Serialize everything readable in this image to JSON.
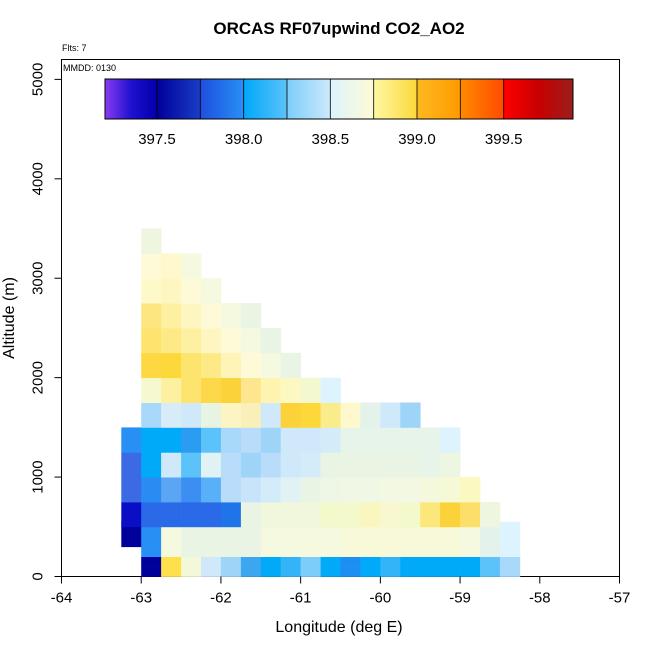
{
  "chart_data": {
    "type": "heatmap",
    "title": "ORCAS RF07upwind CO2_AO2",
    "annotations": {
      "flights": "Flts: 7",
      "date": "MMDD: 0130"
    },
    "xlabel": "Longitude (deg E)",
    "ylabel": "Altitude (m)",
    "xlim": [
      -64,
      -57
    ],
    "ylim": [
      0,
      5200
    ],
    "x_ticks": [
      "-64",
      "-63",
      "-62",
      "-61",
      "-60",
      "-59",
      "-58",
      "-57"
    ],
    "y_ticks": [
      "0",
      "1000",
      "2000",
      "3000",
      "4000",
      "5000"
    ],
    "x_tick_values": [
      -64,
      -63,
      -62,
      -61,
      -60,
      -59,
      -58,
      -57
    ],
    "y_tick_values": [
      0,
      1000,
      2000,
      3000,
      4000,
      5000
    ],
    "colorbar": {
      "min": 397.2,
      "max": 399.9,
      "tick_values": [
        397.5,
        398.0,
        398.5,
        399.0,
        399.5
      ],
      "tick_labels": [
        "397.5",
        "398.0",
        "398.5",
        "399.0",
        "399.5"
      ],
      "segments": [
        {
          "from": 397.2,
          "to": 397.5,
          "colors": [
            "#8a3cf0",
            "#1e10d0",
            "#0000a8"
          ]
        },
        {
          "from": 397.5,
          "to": 397.75,
          "colors": [
            "#00009a",
            "#1a3ec6"
          ]
        },
        {
          "from": 397.75,
          "to": 398.0,
          "colors": [
            "#1f4ee0",
            "#2890f4"
          ]
        },
        {
          "from": 398.0,
          "to": 398.25,
          "colors": [
            "#00a8f8",
            "#5cc2fa"
          ]
        },
        {
          "from": 398.25,
          "to": 398.5,
          "colors": [
            "#7ccdfa",
            "#cde9fb"
          ]
        },
        {
          "from": 398.5,
          "to": 398.75,
          "colors": [
            "#ddf3fd",
            "#fefbd6"
          ]
        },
        {
          "from": 398.75,
          "to": 399.0,
          "colors": [
            "#fff7a2",
            "#fbd83a"
          ]
        },
        {
          "from": 399.0,
          "to": 399.25,
          "colors": [
            "#fdb920",
            "#ff9a00"
          ]
        },
        {
          "from": 399.25,
          "to": 399.5,
          "colors": [
            "#ff8a00",
            "#ff4a00"
          ]
        },
        {
          "from": 399.5,
          "to": 399.9,
          "colors": [
            "#ff0000",
            "#c80000",
            "#9a1e1e"
          ]
        }
      ]
    },
    "lon_bins": [
      -63.25,
      -63.0,
      -62.75,
      -62.5,
      -62.25,
      -62.0,
      -61.75,
      -61.5,
      -61.25,
      -61.0,
      -60.75,
      -60.5,
      -60.25,
      -60.0,
      -59.75,
      -59.5,
      -59.25,
      -59.0,
      -58.75,
      -58.5
    ],
    "alt_bin_size": 100,
    "cells": [
      {
        "alt": 0,
        "lon0": -63.0,
        "values": [
          "#00009a",
          "#fde04a",
          "#f3f8d8",
          "#cfe9fa",
          "#9fd4f9",
          "#3da6f0",
          "#00aaf8",
          "#33b3f8",
          "#7ccdfa",
          "#00aaf8",
          "#1e8ff2",
          "#00aaf8",
          "#33b3f8",
          "#00aaf8",
          "#00aaf8",
          "#00aaf8",
          "#00aaf8",
          "#5cc2fa",
          "#a8d8fa"
        ]
      },
      {
        "alt": 100,
        "lon0": -63.0,
        "values": [
          "#00009a",
          "#fde04a",
          "#f3f8d8",
          "#cfe9fa",
          "#9fd4f9",
          "#3da6f0",
          "#00aaf8",
          "#33b3f8",
          "#7ccdfa",
          "#00aaf8",
          "#1e8ff2",
          "#00aaf8",
          "#33b3f8",
          "#00aaf8",
          "#00aaf8",
          "#00aaf8",
          "#00aaf8",
          "#5cc2fa",
          "#a8d8fa"
        ]
      },
      {
        "alt": 200,
        "lon0": -63.0,
        "values": [
          "#2890f4",
          "#f4f9e0",
          "#eaf4e4",
          "#eaf4e4",
          "#eaf4e4",
          "#eaf4e4",
          "#f4f9e0",
          "#f4f9e0",
          "#f4f9e0",
          "#f4f9e0",
          "#f7f9d8",
          "#f7f9d8",
          "#f7f9d8",
          "#f7f9d8",
          "#f7f9d8",
          "#f7f9d8",
          "#f4f9e0",
          "#e4f2ec",
          "#ddf3fd"
        ]
      },
      {
        "alt": 300,
        "lon0": -63.25,
        "values": [
          "#00009a",
          "#2890f4",
          "#f4f9e0",
          "#eaf4e4",
          "#eaf4e4",
          "#eaf4e4",
          "#eaf4e4",
          "#f4f9e0",
          "#f4f9e0",
          "#f4f9e0",
          "#f4f9e0",
          "#f7f9d8",
          "#f7f9d8",
          "#f7f9d8",
          "#f7f9d8",
          "#f7f9d8",
          "#f7f9d8",
          "#f4f9e0",
          "#e4f2ec",
          "#ddf3fd"
        ]
      },
      {
        "alt": 500,
        "lon0": -63.25,
        "values": [
          "#0a0ec4",
          "#2a6ae8",
          "#2a6ae8",
          "#2a6ae8",
          "#2a6ae8",
          "#1f74ea",
          "#eaf4e4",
          "#f0f7dc",
          "#f0f7dc",
          "#f0f7dc",
          "#f4f9cc",
          "#f4f9cc",
          "#faf6c0",
          "#f8f7d0",
          "#f4f9cc",
          "#fbe77a",
          "#fbd23a",
          "#fbdf6a",
          "#eef6e0"
        ]
      },
      {
        "alt": 750,
        "lon0": -63.25,
        "values": [
          "#3c6ae4",
          "#2a8cf2",
          "#5aa6f4",
          "#3c8ef2",
          "#58b0f8",
          "#b8dcfa",
          "#c8e4fa",
          "#d4ecfa",
          "#e0f2f4",
          "#eaf4e4",
          "#eef6e6",
          "#f0f7e4",
          "#f0f7e4",
          "#f2f8e2",
          "#f2f8e2",
          "#f4f9dc",
          "#f6f9d6",
          "#fbf8c2"
        ]
      },
      {
        "alt": 1000,
        "lon0": -63.25,
        "values": [
          "#3c6ae4",
          "#00aaf8",
          "#cfe9fa",
          "#5cc2fa",
          "#e0f2f4",
          "#b8dcfa",
          "#9fd4f9",
          "#b8dcfa",
          "#cfe9fa",
          "#d4ecfa",
          "#eaf4e4",
          "#eaf4e4",
          "#eaf4e4",
          "#eaf4e4",
          "#eaf4e4",
          "#e6f4ea",
          "#ecf6e0"
        ]
      },
      {
        "alt": 1250,
        "lon0": -63.25,
        "values": [
          "#2890f4",
          "#00aaf8",
          "#00aaf8",
          "#2a9cf2",
          "#5cc2fa",
          "#a8d8fa",
          "#b8dcfa",
          "#9fd4f9",
          "#cfe9fa",
          "#cfe9fa",
          "#d4ecfa",
          "#e6f4ea",
          "#e6f4ea",
          "#e6f4ea",
          "#e6f4ea",
          "#e6f4ea",
          "#ddf3fd"
        ]
      },
      {
        "alt": 1500,
        "lon0": -63.0,
        "values": [
          "#a8d8fa",
          "#d8ecf8",
          "#cfe9fa",
          "#e8f4e2",
          "#fdf4c4",
          "#f8f0b8",
          "#cfe9fa",
          "#fbd23a",
          "#fcd83a",
          "#faec8a",
          "#fef9cc",
          "#e4f2ec",
          "#cfe9fa",
          "#9fd4f9"
        ]
      },
      {
        "alt": 1750,
        "lon0": -63.0,
        "values": [
          "#f6f9d0",
          "#fdf0a0",
          "#fde46e",
          "#fcd84a",
          "#fcd23a",
          "#fde68e",
          "#fef4b0",
          "#fdf8c2",
          "#f4f8d0",
          "#ddf3fd"
        ]
      },
      {
        "alt": 2000,
        "lon0": -63.0,
        "values": [
          "#fdd842",
          "#fcd83a",
          "#fde46e",
          "#fdea86",
          "#fef4b8",
          "#fefad8",
          "#f4f9e0",
          "#eaf4e4"
        ]
      },
      {
        "alt": 2250,
        "lon0": -63.0,
        "values": [
          "#fde46e",
          "#fdea86",
          "#fdf0a0",
          "#fef6c0",
          "#fefad8",
          "#f4f9e0",
          "#eaf4e4"
        ]
      },
      {
        "alt": 2500,
        "lon0": -63.0,
        "values": [
          "#fde680",
          "#fdf0a0",
          "#fef6c0",
          "#fefad8",
          "#f4f9e0",
          "#eaf4e4"
        ]
      },
      {
        "alt": 2750,
        "lon0": -63.0,
        "values": [
          "#fef9c8",
          "#fef6c0",
          "#fefad8",
          "#f4f9e0"
        ]
      },
      {
        "alt": 3000,
        "lon0": -63.0,
        "values": [
          "#fefad8",
          "#fef8cc",
          "#f4f9e0"
        ]
      },
      {
        "alt": 3250,
        "lon0": -63.0,
        "values": [
          "#eef6e0"
        ]
      }
    ]
  }
}
